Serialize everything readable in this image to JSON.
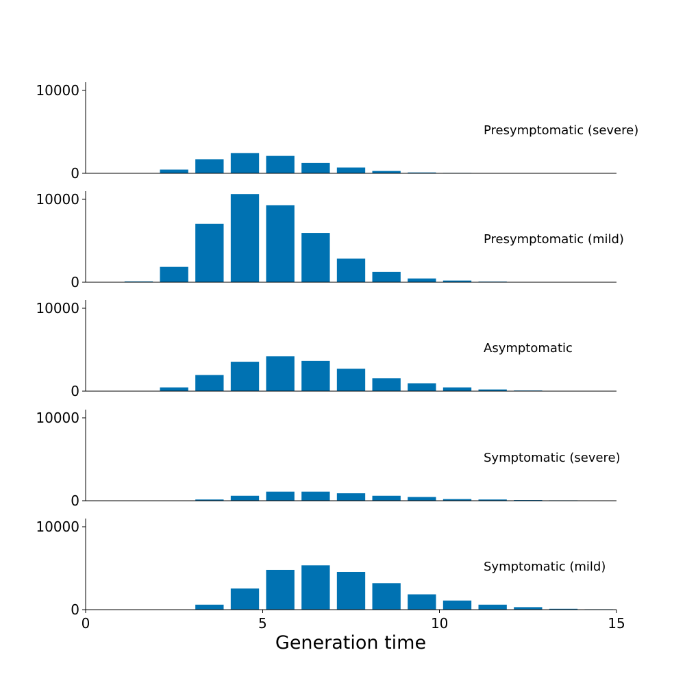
{
  "chart_data": {
    "type": "bar",
    "layout": "vertically stacked panels sharing the x axis",
    "xlabel": "Generation time",
    "xlim": [
      0,
      15
    ],
    "x_ticks": [
      "0",
      "5",
      "10",
      "15"
    ],
    "ylim": [
      0,
      11000
    ],
    "y_ticks": [
      "0",
      "10000"
    ],
    "bar_color": "#0072b2",
    "bins": [
      1,
      2,
      3,
      4,
      5,
      6,
      7,
      8,
      9,
      10,
      11,
      12,
      13,
      14
    ],
    "series": [
      {
        "name": "Presymptomatic (severe)",
        "values": [
          0,
          450,
          1700,
          2450,
          2100,
          1250,
          700,
          280,
          100,
          50,
          0,
          0,
          0,
          0
        ]
      },
      {
        "name": "Presymptomatic (mild)",
        "values": [
          100,
          1850,
          7050,
          10650,
          9300,
          5950,
          2850,
          1250,
          450,
          200,
          80,
          0,
          0,
          0
        ]
      },
      {
        "name": "Asymptomatic",
        "values": [
          0,
          450,
          1950,
          3550,
          4200,
          3650,
          2700,
          1550,
          950,
          450,
          200,
          80,
          0,
          0
        ]
      },
      {
        "name": "Symptomatic (severe)",
        "values": [
          0,
          0,
          150,
          600,
          1100,
          1100,
          900,
          600,
          450,
          200,
          150,
          80,
          50,
          0
        ]
      },
      {
        "name": "Symptomatic (mild)",
        "values": [
          0,
          0,
          600,
          2550,
          4800,
          5350,
          4550,
          3200,
          1850,
          1100,
          600,
          300,
          100,
          50
        ]
      }
    ]
  }
}
